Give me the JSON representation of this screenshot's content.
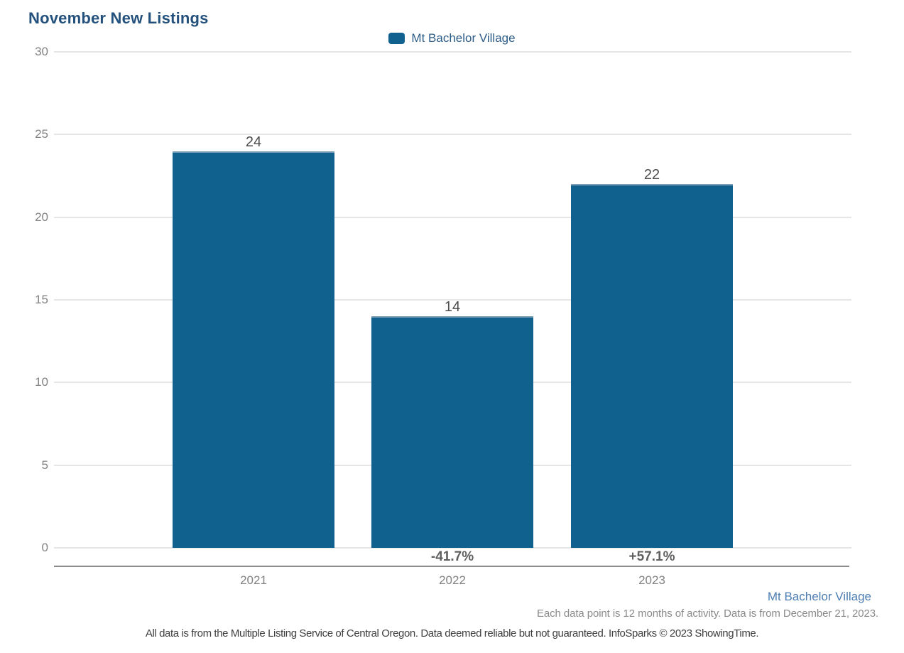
{
  "title": "November New Listings",
  "legend": {
    "label": "Mt Bachelor Village"
  },
  "chart_data": {
    "type": "bar",
    "title": "November New Listings",
    "series_name": "Mt Bachelor Village",
    "categories": [
      "2021",
      "2022",
      "2023"
    ],
    "values": [
      24,
      14,
      22
    ],
    "value_labels": [
      "24",
      "14",
      "22"
    ],
    "pct_change_labels": [
      null,
      "-41.7%",
      "+57.1%"
    ],
    "ylim": [
      0,
      30
    ],
    "yticks": [
      0,
      5,
      10,
      15,
      20,
      25,
      30
    ],
    "xlabel": "",
    "ylabel": "",
    "grid": true,
    "legend_position": "top-center",
    "bar_color": "#11618f",
    "gridline_color": "#e6e6e6",
    "axis_line_color": "#8c8c8c"
  },
  "colors": {
    "bar": "#11618f",
    "title_text": "#24517b",
    "legend_text": "#2d5c87",
    "footer_link": "#4d7eb3",
    "tick_text": "#828282",
    "value_label_text": "#4d4d4d",
    "pct_label_text": "#5f5f5f",
    "note_text": "#8a8a8a",
    "disclaimer_text": "#404040"
  },
  "footer": {
    "series_link": "Mt Bachelor Village",
    "note": "Each data point is 12 months of activity. Data is from December 21, 2023.",
    "disclaimer": "All data is from the Multiple Listing Service of Central Oregon. Data deemed reliable but not guaranteed. InfoSparks © 2023 ShowingTime."
  }
}
